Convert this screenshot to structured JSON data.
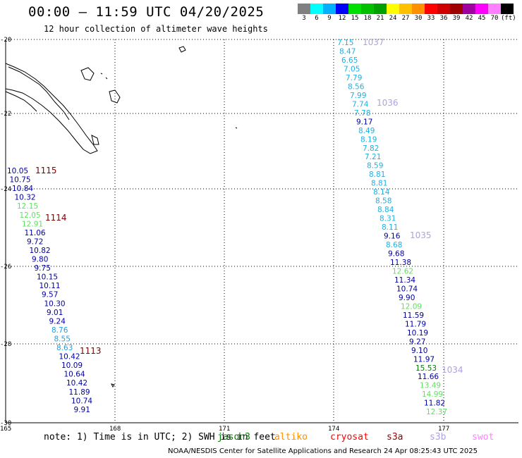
{
  "title": "00:00 – 11:59 UTC 04/20/2025",
  "subtitle": "12 hour collection of altimeter wave heights",
  "legend": {
    "colors": [
      "#808080",
      "#00ffff",
      "#00b0ff",
      "#0000ff",
      "#00e000",
      "#00c000",
      "#00a000",
      "#ffff00",
      "#ffc000",
      "#ff9000",
      "#ff0000",
      "#d00000",
      "#a00000",
      "#a000a0",
      "#ff00ff",
      "#ff80ff",
      "#000000"
    ],
    "labels": [
      "3",
      "6",
      "9",
      "12",
      "15",
      "18",
      "21",
      "24",
      "27",
      "30",
      "33",
      "36",
      "39",
      "42",
      "45",
      "70",
      "(ft)"
    ]
  },
  "axes": {
    "y_labels": [
      "-20",
      "-22",
      "-24",
      "-26",
      "-28",
      "-30"
    ],
    "x_labels": [
      "165",
      "168",
      "171",
      "174",
      "177"
    ]
  },
  "pass_labels": [
    {
      "text": "1115",
      "color": "#800000"
    },
    {
      "text": "1114",
      "color": "#800000"
    },
    {
      "text": "1113",
      "color": "#800000"
    },
    {
      "text": "1037",
      "color": "#b0a0e0"
    },
    {
      "text": "1036",
      "color": "#b0a0e0"
    },
    {
      "text": "1035",
      "color": "#b0a0e0"
    },
    {
      "text": "1034",
      "color": "#b0a0e0"
    }
  ],
  "track_left": [
    {
      "v": "10.05",
      "c": "#0000a0"
    },
    {
      "v": "10.75",
      "c": "#0000a0"
    },
    {
      "v": "10.84",
      "c": "#0000a0"
    },
    {
      "v": "10.32",
      "c": "#0000a0"
    },
    {
      "v": "12.15",
      "c": "#60e060"
    },
    {
      "v": "12.05",
      "c": "#60e060"
    },
    {
      "v": "12.91",
      "c": "#60e060"
    },
    {
      "v": "11.06",
      "c": "#0000a0"
    },
    {
      "v": "9.72",
      "c": "#0000a0"
    },
    {
      "v": "10.82",
      "c": "#0000a0"
    },
    {
      "v": "9.80",
      "c": "#0000a0"
    },
    {
      "v": "9.75",
      "c": "#0000a0"
    },
    {
      "v": "10.15",
      "c": "#0000a0"
    },
    {
      "v": "10.11",
      "c": "#0000a0"
    },
    {
      "v": "9.57",
      "c": "#0000a0"
    },
    {
      "v": "10.30",
      "c": "#0000a0"
    },
    {
      "v": "9.01",
      "c": "#0000a0"
    },
    {
      "v": "9.24",
      "c": "#0000a0"
    },
    {
      "v": "8.76",
      "c": "#20a0e0"
    },
    {
      "v": "8.55",
      "c": "#20a0e0"
    },
    {
      "v": "8.63",
      "c": "#20a0e0"
    },
    {
      "v": "10.42",
      "c": "#0000a0"
    },
    {
      "v": "10.09",
      "c": "#0000a0"
    },
    {
      "v": "10.64",
      "c": "#0000a0"
    },
    {
      "v": "10.42",
      "c": "#0000a0"
    },
    {
      "v": "11.89",
      "c": "#0000a0"
    },
    {
      "v": "10.74",
      "c": "#0000a0"
    },
    {
      "v": "9.91",
      "c": "#0000a0"
    }
  ],
  "track_right": [
    {
      "v": "7.15",
      "c": "#20b0e0"
    },
    {
      "v": "8.47",
      "c": "#20b0e0"
    },
    {
      "v": "6.65",
      "c": "#20b0e0"
    },
    {
      "v": "7.05",
      "c": "#20b0e0"
    },
    {
      "v": "7.79",
      "c": "#20b0e0"
    },
    {
      "v": "8.56",
      "c": "#20b0e0"
    },
    {
      "v": "7.99",
      "c": "#20b0e0"
    },
    {
      "v": "7.74",
      "c": "#20b0e0"
    },
    {
      "v": "7.78",
      "c": "#20b0e0"
    },
    {
      "v": "9.17",
      "c": "#0000a0"
    },
    {
      "v": "8.49",
      "c": "#20b0e0"
    },
    {
      "v": "8.19",
      "c": "#20b0e0"
    },
    {
      "v": "7.82",
      "c": "#20b0e0"
    },
    {
      "v": "7.21",
      "c": "#20b0e0"
    },
    {
      "v": "8.59",
      "c": "#20b0e0"
    },
    {
      "v": "8.81",
      "c": "#20b0e0"
    },
    {
      "v": "8.81",
      "c": "#20b0e0"
    },
    {
      "v": "8.14",
      "c": "#20b0e0"
    },
    {
      "v": "8.58",
      "c": "#20b0e0"
    },
    {
      "v": "8.84",
      "c": "#20b0e0"
    },
    {
      "v": "8.31",
      "c": "#20b0e0"
    },
    {
      "v": "8.11",
      "c": "#20b0e0"
    },
    {
      "v": "9.16",
      "c": "#0000a0"
    },
    {
      "v": "8.68",
      "c": "#20b0e0"
    },
    {
      "v": "9.68",
      "c": "#0000a0"
    },
    {
      "v": "11.38",
      "c": "#0000a0"
    },
    {
      "v": "12.62",
      "c": "#60e060"
    },
    {
      "v": "11.34",
      "c": "#0000a0"
    },
    {
      "v": "10.74",
      "c": "#0000a0"
    },
    {
      "v": "9.90",
      "c": "#0000a0"
    },
    {
      "v": "12.09",
      "c": "#60e060"
    },
    {
      "v": "11.59",
      "c": "#0000a0"
    },
    {
      "v": "11.79",
      "c": "#0000a0"
    },
    {
      "v": "10.19",
      "c": "#0000a0"
    },
    {
      "v": "9.27",
      "c": "#0000a0"
    },
    {
      "v": "9.10",
      "c": "#0000a0"
    },
    {
      "v": "11.97",
      "c": "#0000a0"
    },
    {
      "v": "15.53",
      "c": "#008000"
    },
    {
      "v": "11.66",
      "c": "#0000a0"
    },
    {
      "v": "13.49",
      "c": "#60e060"
    },
    {
      "v": "14.99",
      "c": "#60e060"
    },
    {
      "v": "11.82",
      "c": "#0000a0"
    },
    {
      "v": "12.37",
      "c": "#60e060"
    }
  ],
  "note": "note: 1) Time is in UTC; 2) SWH is in feet",
  "satellites": [
    {
      "name": "jason3",
      "color": "#008000"
    },
    {
      "name": "altiko",
      "color": "#ff9000"
    },
    {
      "name": "cryosat",
      "color": "#ff0000"
    },
    {
      "name": "s3a",
      "color": "#a00000"
    },
    {
      "name": "s3b",
      "color": "#b0a0e0"
    },
    {
      "name": "swot",
      "color": "#ff80ff"
    }
  ],
  "footer": "NOAA/NESDIS Center for Satellite Applications and Research    24 Apr 08:25:43 UTC 2025"
}
